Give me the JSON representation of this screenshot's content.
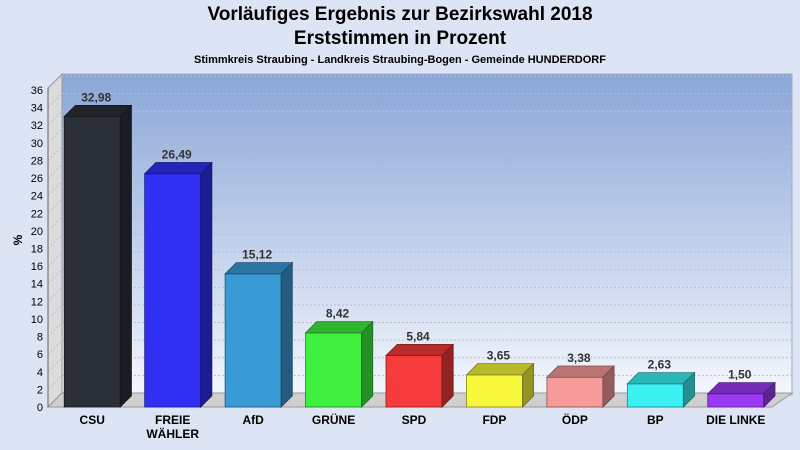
{
  "header": {
    "title_line1": "Vorläufiges Ergebnis zur Bezirkswahl 2018",
    "title_line2": "Erststimmen in Prozent",
    "subtitle": "Stimmkreis Straubing - Landkreis Straubing-Bogen - Gemeinde HUNDERDORF"
  },
  "chart_data": {
    "type": "bar",
    "title": "Vorläufiges Ergebnis zur Bezirkswahl 2018 Erststimmen in Prozent",
    "subtitle": "Stimmkreis Straubing - Landkreis Straubing-Bogen - Gemeinde HUNDERDORF",
    "ylabel": "%",
    "ylim": [
      0,
      36
    ],
    "yticks": [
      0,
      2,
      4,
      6,
      8,
      10,
      12,
      14,
      16,
      18,
      20,
      22,
      24,
      26,
      28,
      30,
      32,
      34,
      36
    ],
    "grid": true,
    "categories": [
      "CSU",
      "FREIE WÄHLER",
      "AfD",
      "GRÜNE",
      "SPD",
      "FDP",
      "ÖDP",
      "BP",
      "DIE LINKE"
    ],
    "category_lines": [
      [
        "CSU"
      ],
      [
        "FREIE",
        "WÄHLER"
      ],
      [
        "AfD"
      ],
      [
        "GRÜNE"
      ],
      [
        "SPD"
      ],
      [
        "FDP"
      ],
      [
        "ÖDP"
      ],
      [
        "BP"
      ],
      [
        "DIE LINKE"
      ]
    ],
    "values": [
      32.98,
      26.49,
      15.12,
      8.42,
      5.84,
      3.65,
      3.38,
      2.63,
      1.5
    ],
    "value_labels": [
      "32,98",
      "26,49",
      "15,12",
      "8,42",
      "5,84",
      "3,65",
      "3,38",
      "2,63",
      "1,50"
    ],
    "colors": [
      "#2b2f38",
      "#3030f5",
      "#3a9ad6",
      "#40f040",
      "#f53b3b",
      "#f7f73b",
      "#f79a9a",
      "#3af2f2",
      "#9a3af5"
    ]
  }
}
